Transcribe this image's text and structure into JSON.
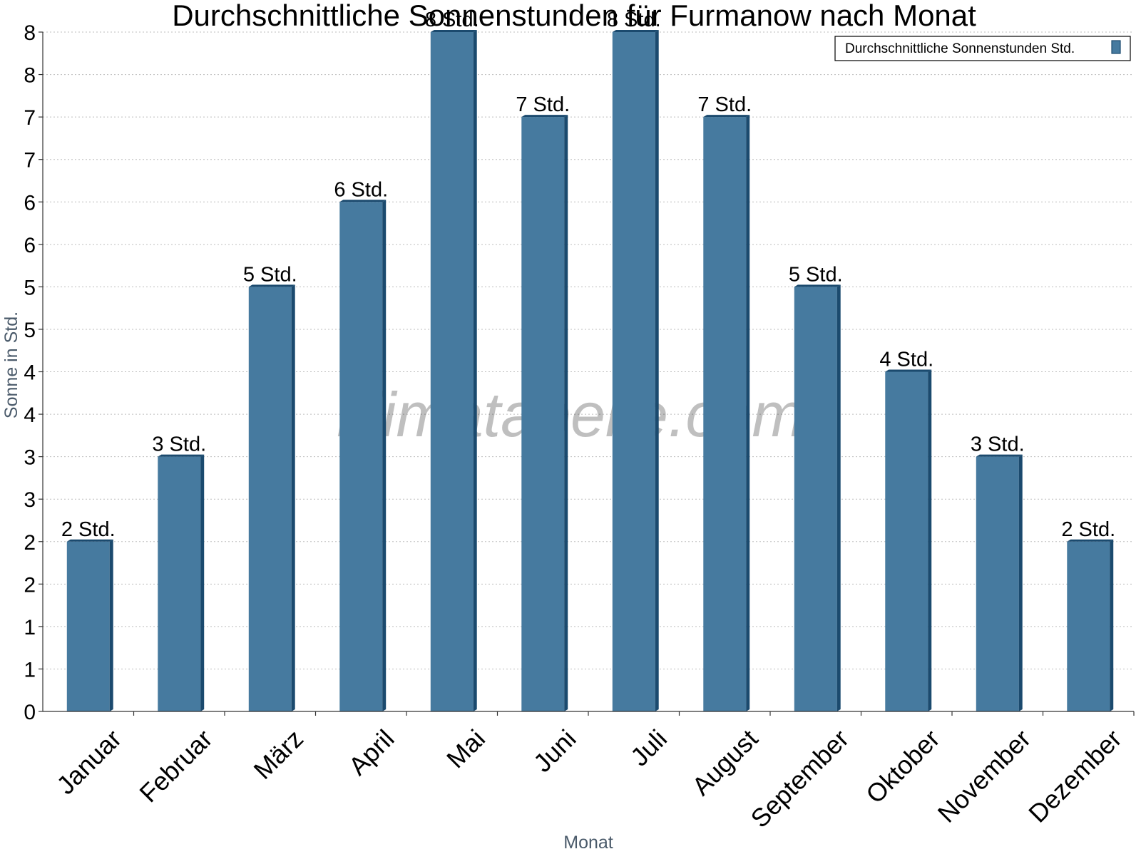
{
  "chart_data": {
    "type": "bar",
    "title": "Durchschnittliche Sonnenstunden für Furmanow nach Monat",
    "xlabel": "Monat",
    "ylabel": "Sonne in Std.",
    "categories": [
      "Januar",
      "Februar",
      "März",
      "April",
      "Mai",
      "Juni",
      "Juli",
      "August",
      "September",
      "Oktober",
      "November",
      "Dezember"
    ],
    "series": [
      {
        "name": "Durchschnittliche Sonnenstunden Std.",
        "values": [
          2,
          3,
          5,
          6,
          8,
          7,
          8,
          7,
          5,
          4,
          3,
          2
        ],
        "data_labels": [
          "2 Std.",
          "3 Std.",
          "5 Std.",
          "6 Std.",
          "8 Std.",
          "7 Std.",
          "8 Std.",
          "7 Std.",
          "5 Std.",
          "4 Std.",
          "3 Std.",
          "2 Std."
        ]
      }
    ],
    "ylim": [
      0,
      8
    ],
    "y_tick_labels": [
      "0",
      "1",
      "1",
      "2",
      "2",
      "3",
      "3",
      "4",
      "4",
      "5",
      "5",
      "6",
      "6",
      "7",
      "7",
      "8",
      "8"
    ],
    "grid": true,
    "legend_position": "top-right",
    "watermark": "klimatabelle.com",
    "colors": {
      "bar": "#467a9f",
      "bar_side": "#1b4a6e",
      "grid": "#bdbdbd"
    }
  }
}
